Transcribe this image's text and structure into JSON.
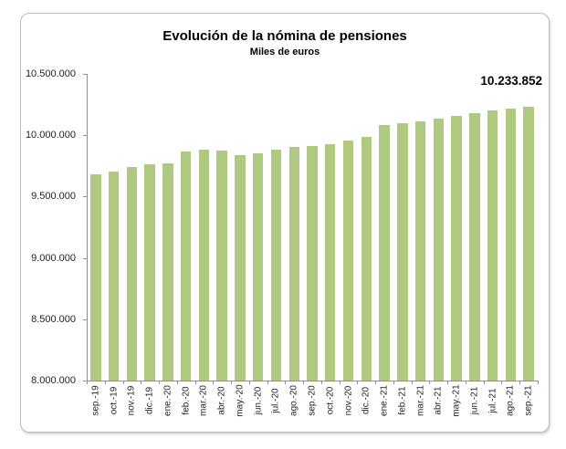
{
  "chart_data": {
    "type": "bar",
    "title": "Evolución de la nómina de pensiones",
    "subtitle": "Miles de euros",
    "categories": [
      "sep.-19",
      "oct.-19",
      "nov.-19",
      "dic.-19",
      "ene.-20",
      "feb.-20",
      "mar.-20",
      "abr.-20",
      "may.-20",
      "jun.-20",
      "jul.-20",
      "ago.-20",
      "sep.-20",
      "oct.-20",
      "nov.-20",
      "dic.-20",
      "ene.-21",
      "feb.-21",
      "mar.-21",
      "abr.-21",
      "may.-21",
      "jun.-21",
      "jul.-21",
      "ago.-21",
      "sep.-21"
    ],
    "values": [
      9685000,
      9705000,
      9740000,
      9760000,
      9770000,
      9870000,
      9880000,
      9875000,
      9840000,
      9855000,
      9885000,
      9905000,
      9910000,
      9925000,
      9955000,
      9985000,
      10085000,
      10100000,
      10115000,
      10135000,
      10160000,
      10180000,
      10205000,
      10220000,
      10233852
    ],
    "last_point_label": "10.233.852",
    "xlabel": "",
    "ylabel": "",
    "ylim": [
      8000000,
      10500000
    ],
    "ytick_step": 500000,
    "ytick_labels": [
      "10.500.000",
      "10.000.000",
      "9.500.000",
      "9.000.000",
      "8.500.000",
      "8.000.000"
    ],
    "grid": false,
    "legend": "none",
    "colors": {
      "bar": "#afca80",
      "axis": "#8f8f8f",
      "text": "#1f1f1f",
      "frame_border": "#bdbdbd"
    }
  }
}
